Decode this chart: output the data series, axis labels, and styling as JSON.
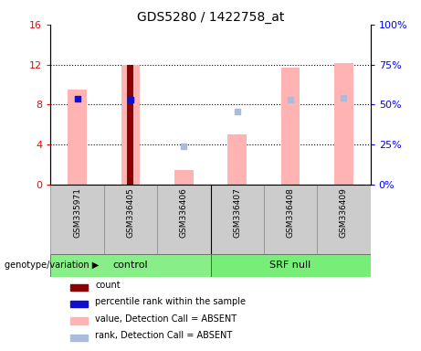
{
  "title": "GDS5280 / 1422758_at",
  "samples": [
    "GSM335971",
    "GSM336405",
    "GSM336406",
    "GSM336407",
    "GSM336408",
    "GSM336409"
  ],
  "ylim_left": [
    0,
    16
  ],
  "ylim_right": [
    0,
    100
  ],
  "yticks_left": [
    0,
    4,
    8,
    12,
    16
  ],
  "ytick_labels_left": [
    "0",
    "4",
    "8",
    "12",
    "16"
  ],
  "yticks_right": [
    0,
    25,
    50,
    75,
    100
  ],
  "ytick_labels_right": [
    "0%",
    "25%",
    "50%",
    "75%",
    "100%"
  ],
  "bars_pink_values": {
    "GSM335971": 9.5,
    "GSM336405": 12.0,
    "GSM336406": 1.4,
    "GSM336407": 5.0,
    "GSM336408": 11.7,
    "GSM336409": 12.1
  },
  "bars_dark_red_values": {
    "GSM336405": 12.0
  },
  "dots_blue_left": {
    "GSM335971": 8.6,
    "GSM336405": 8.5
  },
  "dots_lightblue_left": {
    "GSM336406": 3.8,
    "GSM336407": 7.3,
    "GSM336408": 8.5,
    "GSM336409": 8.7
  },
  "color_pink": "#FFB3B3",
  "color_dark_red": "#8B0000",
  "color_blue": "#1010CC",
  "color_lightblue": "#AABBDD",
  "color_gray": "#CCCCCC",
  "color_green_control": "#88EE88",
  "color_green_srf": "#77EE77",
  "pink_bar_width": 0.35,
  "dark_red_bar_width": 0.12,
  "grid_lines": [
    4,
    8,
    12
  ],
  "legend_entries": [
    {
      "label": "count",
      "color": "#8B0000"
    },
    {
      "label": "percentile rank within the sample",
      "color": "#1010CC"
    },
    {
      "label": "value, Detection Call = ABSENT",
      "color": "#FFB3B3"
    },
    {
      "label": "rank, Detection Call = ABSENT",
      "color": "#AABBDD"
    }
  ],
  "group_control_idx": [
    0,
    1,
    2
  ],
  "group_srf_idx": [
    3,
    4,
    5
  ],
  "group_control_label": "control",
  "group_srf_label": "SRF null",
  "genotype_label": "genotype/variation"
}
